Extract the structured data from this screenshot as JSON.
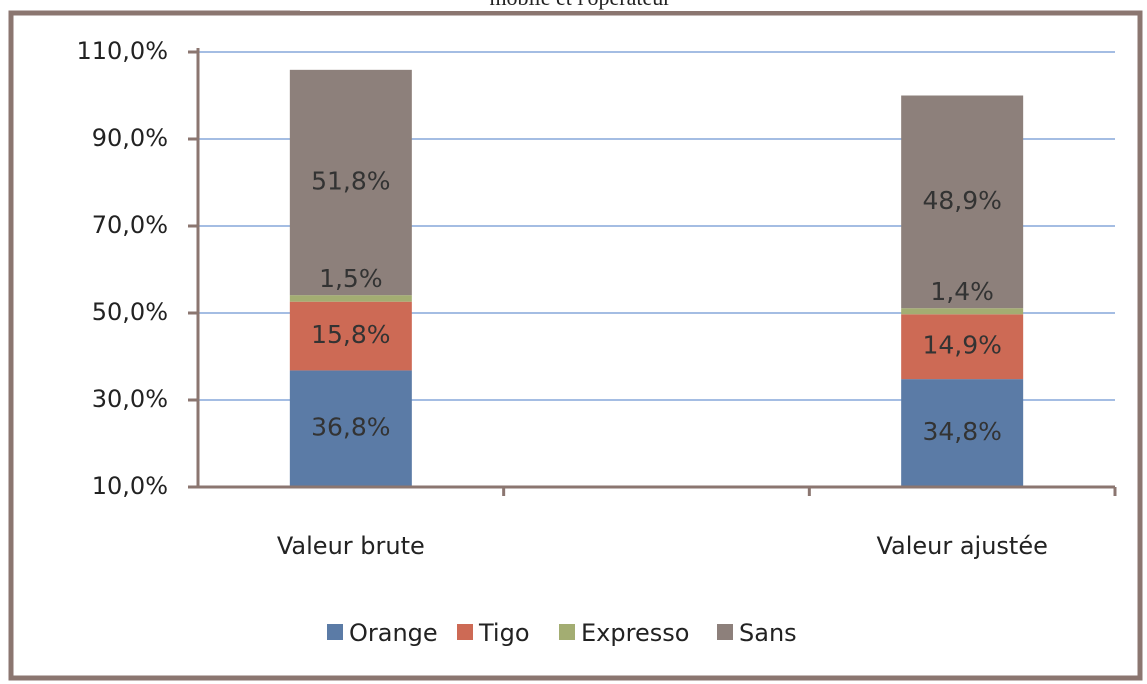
{
  "chart_data": {
    "type": "stacked_bar",
    "title": "mobile et l'opérateur",
    "categories": [
      "Valeur brute",
      null,
      "Valeur ajustée"
    ],
    "series": [
      {
        "name": "Orange",
        "color": "#5b7ba6",
        "values": [
          36.8,
          null,
          34.8
        ],
        "value_labels": [
          "36,8%",
          null,
          "34,8%"
        ]
      },
      {
        "name": "Tigo",
        "color": "#cd6a55",
        "values": [
          15.8,
          null,
          14.9
        ],
        "value_labels": [
          "15,8%",
          null,
          "14,9%"
        ]
      },
      {
        "name": "Expresso",
        "color": "#a3ad72",
        "values": [
          1.5,
          null,
          1.4
        ],
        "value_labels": [
          "1,5%",
          null,
          "1,4%"
        ]
      },
      {
        "name": "Sans",
        "color": "#8d807b",
        "values": [
          51.8,
          null,
          48.9
        ],
        "value_labels": [
          "51,8%",
          null,
          "48,9%"
        ]
      }
    ],
    "ylim": [
      10,
      110
    ],
    "yticks": [
      {
        "value": 10,
        "label": "10,0%"
      },
      {
        "value": 30,
        "label": "30,0%"
      },
      {
        "value": 50,
        "label": "50,0%"
      },
      {
        "value": 70,
        "label": "70,0%"
      },
      {
        "value": 90,
        "label": "90,0%"
      },
      {
        "value": 110,
        "label": "110,0%"
      }
    ],
    "grid": true,
    "legend": "bottom"
  }
}
